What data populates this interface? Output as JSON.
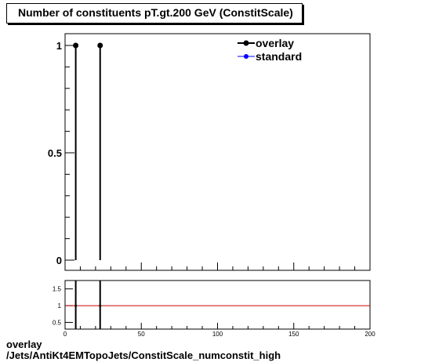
{
  "title": "Number of constituents pT.gt.200 GeV (ConstitScale)",
  "footer": {
    "line1": "overlay",
    "line2": "/Jets/AntiKt4EMTopoJets/ConstitScale_numconstit_high"
  },
  "colors": {
    "overlay": "#000000",
    "standard": "#0000ff",
    "ratio_line": "#cc0000"
  },
  "chart_data": [
    {
      "type": "scatter",
      "title": "Number of constituents pT.gt.200 GeV (ConstitScale)",
      "xlim": [
        0,
        200
      ],
      "ylim": [
        0,
        1.05
      ],
      "y_ticks": [
        0,
        0.5,
        1
      ],
      "y_tick_labels": [
        "0",
        "0.5",
        "1"
      ],
      "legend": {
        "position": "top-right",
        "entries": [
          "overlay",
          "standard"
        ]
      },
      "series": [
        {
          "name": "overlay",
          "x": [
            7,
            23
          ],
          "y": [
            1,
            1
          ],
          "yerr": [
            1,
            1
          ]
        },
        {
          "name": "standard",
          "x": [],
          "y": []
        }
      ],
      "grid": false
    },
    {
      "type": "scatter",
      "title": "",
      "xlim": [
        0,
        200
      ],
      "ylim": [
        0.3,
        1.75
      ],
      "x_ticks": [
        0,
        50,
        100,
        150,
        200
      ],
      "x_tick_labels": [
        "0",
        "50",
        "100",
        "150",
        "200"
      ],
      "y_ticks": [
        0.5,
        1,
        1.5
      ],
      "y_tick_labels": [
        "0.5",
        "1",
        "1.5"
      ],
      "reference_line": 1,
      "series": [
        {
          "name": "ratio",
          "x": [
            7,
            23
          ],
          "y": [
            1,
            1
          ]
        }
      ],
      "grid": false
    }
  ]
}
